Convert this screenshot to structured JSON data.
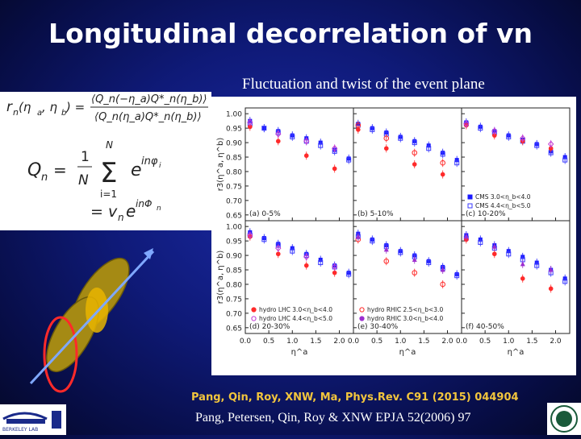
{
  "slide": {
    "title": "Longitudinal decorrelation of vn",
    "subtitle": "Fluctuation and twist of the event plane",
    "citation_1": "Pang, Qin, Roy, XNW, Ma, Phys.Rev. C91 (2015) 044904",
    "citation_2": "Pang, Petersen, Qin, Roy & XNW EPJA 52(2006) 97",
    "logo_left_text": "BERKELEY LAB"
  },
  "formulas": {
    "rn_lhs": "r",
    "rn_sub": "n",
    "rn_args": "(η",
    "rn_args2": "a",
    "rn_args3": ", η",
    "rn_args4": "b",
    "rn_args5": ") =",
    "rn_num": "⟨Q_n(−η_a)Q*_n(η_b)⟩",
    "rn_den": "⟨Q_n(η_a)Q*_n(η_b)⟩",
    "qn_lhs": "Q",
    "qn_sub": "n",
    "qn_eq": "=",
    "qn_frac_num": "1",
    "qn_frac_den": "N",
    "sum_top": "N",
    "sum_bottom": "i=1",
    "sum_symbol": "Σ",
    "exp_base": "e",
    "exp_power": "inφ",
    "exp_power_sub": "i",
    "line2_eq": "= v",
    "line2_sub": "n",
    "line2_exp_base": "e",
    "line2_exp_power": "inΦ",
    "line2_exp_power_sub": "n"
  },
  "colors": {
    "ellipse_fill": "#a58a14",
    "ellipse_inner": "#e8b400",
    "ellipse_red": "#ff2a2a",
    "arrow": "#7fa8ff",
    "cms_a": "#1a1aff",
    "cms_b": "#3a3aff",
    "hydro_lhc_a": "#ff2a2a",
    "hydro_lhc_b": "#c23bd4",
    "hydro_rhic_a": "#ff2a2a",
    "hydro_rhic_b": "#9c2ecf"
  },
  "chart_data": {
    "type": "scatter",
    "y_axis_label": "r3(η^a, η^b)",
    "x_axis_label": "η^a",
    "ylim": [
      0.63,
      1.02
    ],
    "xlim": [
      0.0,
      2.3
    ],
    "y_ticks": [
      "1.00",
      "0.95",
      "0.90",
      "0.85",
      "0.80",
      "0.75",
      "0.70",
      "0.65"
    ],
    "x_ticks": [
      "0.0",
      "0.5",
      "1.0",
      "1.5",
      "2.0"
    ],
    "x_tick_values": [
      0.0,
      0.5,
      1.0,
      1.5,
      2.0
    ],
    "y_tick_values": [
      1.0,
      0.95,
      0.9,
      0.85,
      0.8,
      0.75,
      0.7,
      0.65
    ],
    "panels": [
      {
        "label": "(a) 0-5%",
        "series": [
          {
            "name": "CMS 3.0<η_b<4.0",
            "marker": "filled-square",
            "color": "#1a1aff",
            "x": [
              0.1,
              0.4,
              0.7,
              1.0,
              1.3,
              1.6,
              1.9,
              2.2
            ],
            "y": [
              0.975,
              0.95,
              0.94,
              0.925,
              0.915,
              0.9,
              0.875,
              0.845
            ]
          },
          {
            "name": "CMS 4.4<η_b<5.0",
            "marker": "open-square",
            "color": "#3a3aff",
            "x": [
              0.1,
              0.4,
              0.7,
              1.0,
              1.3,
              1.6,
              1.9,
              2.2
            ],
            "y": [
              0.965,
              0.95,
              0.935,
              0.92,
              0.905,
              0.89,
              0.87,
              0.84
            ]
          },
          {
            "name": "hydro LHC 3.0<η_b<4.0",
            "marker": "filled-circle",
            "color": "#ff2a2a",
            "x": [
              0.1,
              0.7,
              1.3,
              1.9
            ],
            "y": [
              0.955,
              0.905,
              0.855,
              0.81
            ]
          },
          {
            "name": "hydro LHC 4.4<η_b<5.0",
            "marker": "open-diamond",
            "color": "#c23bd4",
            "x": [
              0.1,
              0.7,
              1.3,
              1.9
            ],
            "y": [
              0.97,
              0.93,
              0.905,
              0.88
            ]
          }
        ]
      },
      {
        "label": "(b) 5-10%",
        "series": [
          {
            "name": "CMS 3.0<η_b<4.0",
            "marker": "filled-square",
            "color": "#1a1aff",
            "x": [
              0.1,
              0.4,
              0.7,
              1.0,
              1.3,
              1.6,
              1.9,
              2.2
            ],
            "y": [
              0.965,
              0.95,
              0.935,
              0.92,
              0.905,
              0.89,
              0.865,
              0.84
            ]
          },
          {
            "name": "CMS 4.4<η_b<5.0",
            "marker": "open-square",
            "color": "#3a3aff",
            "x": [
              0.1,
              0.4,
              0.7,
              1.0,
              1.3,
              1.6,
              1.9,
              2.2
            ],
            "y": [
              0.96,
              0.945,
              0.93,
              0.915,
              0.9,
              0.88,
              0.86,
              0.83
            ]
          },
          {
            "name": "hydro LHC 3.0<η_b<4.0",
            "marker": "filled-circle",
            "color": "#ff2a2a",
            "x": [
              0.1,
              0.7,
              1.3,
              1.9
            ],
            "y": [
              0.945,
              0.88,
              0.825,
              0.79
            ]
          },
          {
            "name": "hydro LHC 4.4<η_b<5.0",
            "marker": "open-circle",
            "color": "#ff2a2a",
            "x": [
              0.1,
              0.7,
              1.3,
              1.9
            ],
            "y": [
              0.96,
              0.915,
              0.865,
              0.83
            ]
          }
        ]
      },
      {
        "label": "(c) 10-20%",
        "series": [
          {
            "name": "CMS 3.0<η_b<4.0",
            "marker": "filled-square",
            "color": "#1a1aff",
            "x": [
              0.1,
              0.4,
              0.7,
              1.0,
              1.3,
              1.6,
              1.9,
              2.2
            ],
            "y": [
              0.97,
              0.955,
              0.94,
              0.925,
              0.91,
              0.895,
              0.87,
              0.85
            ]
          },
          {
            "name": "CMS 4.4<η_b<5.0",
            "marker": "open-square",
            "color": "#3a3aff",
            "x": [
              0.1,
              0.4,
              0.7,
              1.0,
              1.3,
              1.6,
              1.9,
              2.2
            ],
            "y": [
              0.965,
              0.95,
              0.935,
              0.92,
              0.905,
              0.89,
              0.865,
              0.84
            ]
          },
          {
            "name": "hydro LHC 3.0<η_b<4.0",
            "marker": "filled-circle",
            "color": "#ff2a2a",
            "x": [
              0.1,
              0.7,
              1.3,
              1.9
            ],
            "y": [
              0.96,
              0.925,
              0.905,
              0.88
            ]
          },
          {
            "name": "hydro LHC 4.4<η_b<5.0",
            "marker": "open-diamond",
            "color": "#c23bd4",
            "x": [
              0.1,
              0.7,
              1.3,
              1.9
            ],
            "y": [
              0.965,
              0.94,
              0.915,
              0.895
            ]
          }
        ],
        "legend": [
          "CMS 3.0<η_b<4.0",
          "CMS 4.4<η_b<5.0"
        ]
      },
      {
        "label": "(d) 20-30%",
        "series": [
          {
            "name": "CMS 3.0<η_b<4.0",
            "marker": "filled-square",
            "color": "#1a1aff",
            "x": [
              0.1,
              0.4,
              0.7,
              1.0,
              1.3,
              1.6,
              1.9,
              2.2
            ],
            "y": [
              0.98,
              0.96,
              0.94,
              0.925,
              0.905,
              0.885,
              0.865,
              0.84
            ]
          },
          {
            "name": "CMS 4.4<η_b<5.0",
            "marker": "open-square",
            "color": "#3a3aff",
            "x": [
              0.1,
              0.4,
              0.7,
              1.0,
              1.3,
              1.6,
              1.9,
              2.2
            ],
            "y": [
              0.97,
              0.955,
              0.935,
              0.915,
              0.9,
              0.875,
              0.86,
              0.835
            ]
          },
          {
            "name": "hydro LHC 3.0<η_b<4.0",
            "marker": "filled-circle",
            "color": "#ff2a2a",
            "x": [
              0.1,
              0.7,
              1.3,
              1.9
            ],
            "y": [
              0.965,
              0.905,
              0.865,
              0.84
            ]
          },
          {
            "name": "hydro LHC 4.4<η_b<5.0",
            "marker": "open-diamond",
            "color": "#c23bd4",
            "x": [
              0.1,
              0.7,
              1.3,
              1.9
            ],
            "y": [
              0.97,
              0.925,
              0.895,
              0.86
            ]
          }
        ],
        "legend": [
          "hydro LHC 3.0<η_b<4.0",
          "hydro LHC 4.4<η_b<5.0"
        ]
      },
      {
        "label": "(e) 30-40%",
        "series": [
          {
            "name": "CMS 3.0<η_b<4.0",
            "marker": "filled-square",
            "color": "#1a1aff",
            "x": [
              0.1,
              0.4,
              0.7,
              1.0,
              1.3,
              1.6,
              1.9,
              2.2
            ],
            "y": [
              0.975,
              0.955,
              0.935,
              0.915,
              0.9,
              0.88,
              0.86,
              0.835
            ]
          },
          {
            "name": "CMS 4.4<η_b<5.0",
            "marker": "open-square",
            "color": "#3a3aff",
            "x": [
              0.1,
              0.4,
              0.7,
              1.0,
              1.3,
              1.6,
              1.9,
              2.2
            ],
            "y": [
              0.965,
              0.95,
              0.93,
              0.91,
              0.895,
              0.875,
              0.855,
              0.83
            ]
          },
          {
            "name": "hydro RHIC 2.5<η_b<3.0",
            "marker": "open-circle",
            "color": "#ff2a2a",
            "x": [
              0.1,
              0.7,
              1.3,
              1.9
            ],
            "y": [
              0.955,
              0.88,
              0.84,
              0.8
            ]
          },
          {
            "name": "hydro RHIC 3.0<η_b<4.0",
            "marker": "filled-triangle",
            "color": "#9c2ecf",
            "x": [
              0.1,
              0.7,
              1.3,
              1.9
            ],
            "y": [
              0.965,
              0.92,
              0.885,
              0.85
            ]
          }
        ],
        "legend": [
          "hydro RHIC 2.5<η_b<3.0",
          "hydro RHIC 3.0<η_b<4.0"
        ]
      },
      {
        "label": "(f) 40-50%",
        "series": [
          {
            "name": "CMS 3.0<η_b<4.0",
            "marker": "filled-square",
            "color": "#1a1aff",
            "x": [
              0.1,
              0.4,
              0.7,
              1.0,
              1.3,
              1.6,
              1.9,
              2.2
            ],
            "y": [
              0.97,
              0.955,
              0.935,
              0.915,
              0.895,
              0.875,
              0.85,
              0.82
            ]
          },
          {
            "name": "CMS 4.4<η_b<5.0",
            "marker": "open-square",
            "color": "#3a3aff",
            "x": [
              0.1,
              0.4,
              0.7,
              1.0,
              1.3,
              1.6,
              1.9,
              2.2
            ],
            "y": [
              0.96,
              0.945,
              0.925,
              0.905,
              0.885,
              0.865,
              0.84,
              0.81
            ]
          },
          {
            "name": "hydro RHIC 2.5<η_b<3.0",
            "marker": "filled-circle",
            "color": "#ff2a2a",
            "x": [
              0.1,
              0.7,
              1.3,
              1.9
            ],
            "y": [
              0.955,
              0.905,
              0.82,
              0.785
            ]
          },
          {
            "name": "hydro RHIC 3.0<η_b<4.0",
            "marker": "filled-triangle",
            "color": "#9c2ecf",
            "x": [
              0.1,
              0.7,
              1.3,
              1.9
            ],
            "y": [
              0.965,
              0.93,
              0.87,
              0.85
            ]
          }
        ]
      }
    ]
  }
}
